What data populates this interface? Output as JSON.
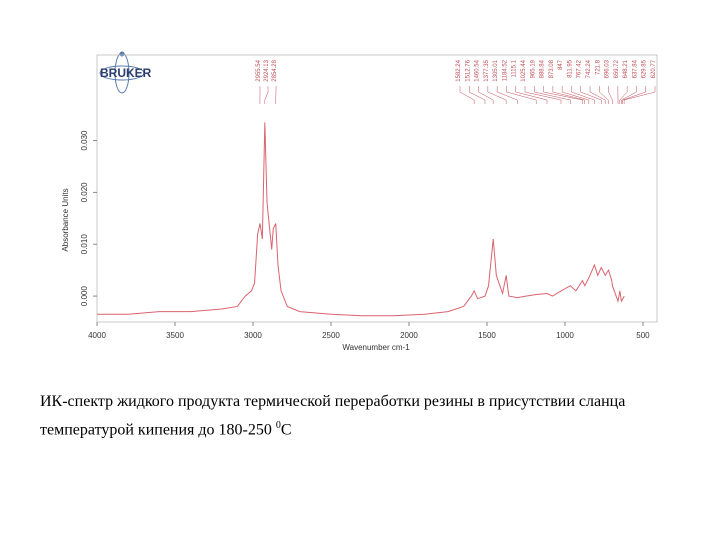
{
  "logo": "BRUKER",
  "chart_data": {
    "type": "line",
    "x_label": "Wavenumber cm-1",
    "y_label": "Absorbance Units",
    "x": [
      4000,
      3800,
      3600,
      3400,
      3200,
      3100,
      3050,
      3010,
      2990,
      2970,
      2955,
      2940,
      2924,
      2910,
      2880,
      2870,
      2854,
      2840,
      2820,
      2780,
      2700,
      2500,
      2300,
      2100,
      1900,
      1750,
      1650,
      1600,
      1582,
      1560,
      1512,
      1490,
      1460,
      1440,
      1400,
      1377,
      1360,
      1305,
      1250,
      1184,
      1115,
      1080,
      1025,
      965,
      930,
      888,
      873,
      847,
      811,
      790,
      767,
      742,
      721,
      700,
      696,
      660,
      648,
      638,
      620
    ],
    "values": [
      -0.0035,
      -0.0035,
      -0.003,
      -0.003,
      -0.0025,
      -0.002,
      0.0,
      0.001,
      0.0025,
      0.012,
      0.014,
      0.011,
      0.0335,
      0.018,
      0.009,
      0.013,
      0.014,
      0.006,
      0.001,
      -0.002,
      -0.003,
      -0.0035,
      -0.0038,
      -0.0038,
      -0.0035,
      -0.003,
      -0.002,
      0.0,
      0.001,
      -0.0005,
      0.0,
      0.002,
      0.011,
      0.004,
      0.0005,
      0.004,
      0.0,
      -0.0003,
      0.0,
      0.0003,
      0.0005,
      0.0,
      0.001,
      0.002,
      0.001,
      0.003,
      0.002,
      0.0035,
      0.006,
      0.004,
      0.0055,
      0.004,
      0.005,
      0.003,
      0.002,
      -0.001,
      0.001,
      -0.001,
      0.0
    ],
    "color": "#d9646e",
    "xlim": [
      4000,
      410
    ],
    "ylim": [
      -0.005,
      0.0465
    ],
    "xticks": [
      4000,
      3500,
      3000,
      2500,
      2000,
      1500,
      1000,
      500
    ],
    "yticks": [
      {
        "value": 0,
        "label": "0.000"
      },
      {
        "value": 0.01,
        "label": "0.010"
      },
      {
        "value": 0.02,
        "label": "0.020"
      },
      {
        "value": 0.03,
        "label": "0.030"
      }
    ],
    "peak_labels": [
      2955.54,
      2924.13,
      2854.28,
      1582.24,
      1512.76,
      1460.54,
      1377.35,
      1305.01,
      1184.52,
      1115.1,
      1025.44,
      965.19,
      888.84,
      873.08,
      847.0,
      811.95,
      767.42,
      742.24,
      721.8,
      696.03,
      659.72,
      648.21,
      637.84,
      629.85,
      620.77
    ]
  },
  "caption": {
    "text": "ИК-спектр жидкого продукта термической переработки  резины в присутствии сланца температурой кипения до 180-250 ",
    "superscript": "0",
    "unit": "С"
  }
}
